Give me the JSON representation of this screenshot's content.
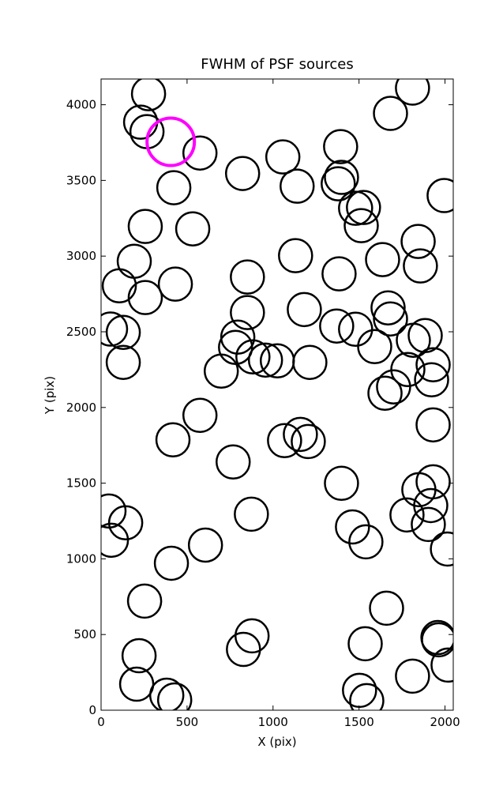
{
  "chart_data": {
    "type": "scatter",
    "title": "FWHM of PSF sources",
    "x_label": "X (pix)",
    "y_label": "Y (pix)",
    "xlim": [
      0,
      2048
    ],
    "ylim": [
      0,
      4170
    ],
    "xticks": [
      0,
      500,
      1000,
      1500,
      2000
    ],
    "yticks": [
      0,
      500,
      1000,
      1500,
      2000,
      2500,
      3000,
      3500,
      4000
    ],
    "grid": false,
    "series": [
      {
        "color": "#000000",
        "x": [
          276,
          230,
          267,
          575,
          423,
          257,
          533,
          193,
          106,
          257,
          432,
          55,
          129,
          129,
          418,
          575,
          768,
          874,
          607,
          409,
          253,
          221,
          207,
          382,
          428,
          46,
          60,
          143,
          823,
          1057,
          1140,
          1131,
          851,
          851,
          1182,
          795,
          782,
          883,
          956,
          1025,
          699,
          1214,
          1067,
          1159,
          1205,
          1393,
          1398,
          1379,
          1480,
          1526,
          1513,
          1384,
          1370,
          1480,
          1591,
          1637,
          1669,
          1683,
          1683,
          1811,
          1995,
          1844,
          1857,
          1816,
          1885,
          1784,
          1701,
          1651,
          1931,
          1922,
          1931,
          1398,
          1462,
          1540,
          1779,
          1848,
          1931,
          1917,
          1903,
          2014,
          1660,
          1536,
          1963,
          1959,
          2018,
          1811,
          1503,
          1545,
          878,
          828
        ],
        "y": [
          4073,
          3885,
          3822,
          3681,
          3452,
          3196,
          3180,
          2966,
          2804,
          2726,
          2815,
          2518,
          2496,
          2298,
          1786,
          1948,
          1640,
          1295,
          1091,
          971,
          721,
          360,
          172,
          99,
          68,
          1316,
          1123,
          1238,
          3546,
          3655,
          3462,
          3003,
          2862,
          2627,
          2647,
          2465,
          2397,
          2334,
          2313,
          2308,
          2240,
          2298,
          1781,
          1822,
          1775,
          3723,
          3520,
          3478,
          3316,
          3321,
          3201,
          2883,
          2538,
          2517,
          2402,
          2977,
          2658,
          2585,
          3943,
          4110,
          3400,
          3097,
          2935,
          2444,
          2475,
          2251,
          2136,
          2094,
          2282,
          2183,
          1885,
          1499,
          1211,
          1112,
          1290,
          1457,
          1509,
          1352,
          1227,
          1065,
          674,
          439,
          465,
          480,
          298,
          225,
          131,
          63,
          491,
          402
        ]
      },
      {
        "color": "#ff00ff",
        "x": [
          405
        ],
        "y": [
          3755
        ]
      }
    ]
  }
}
